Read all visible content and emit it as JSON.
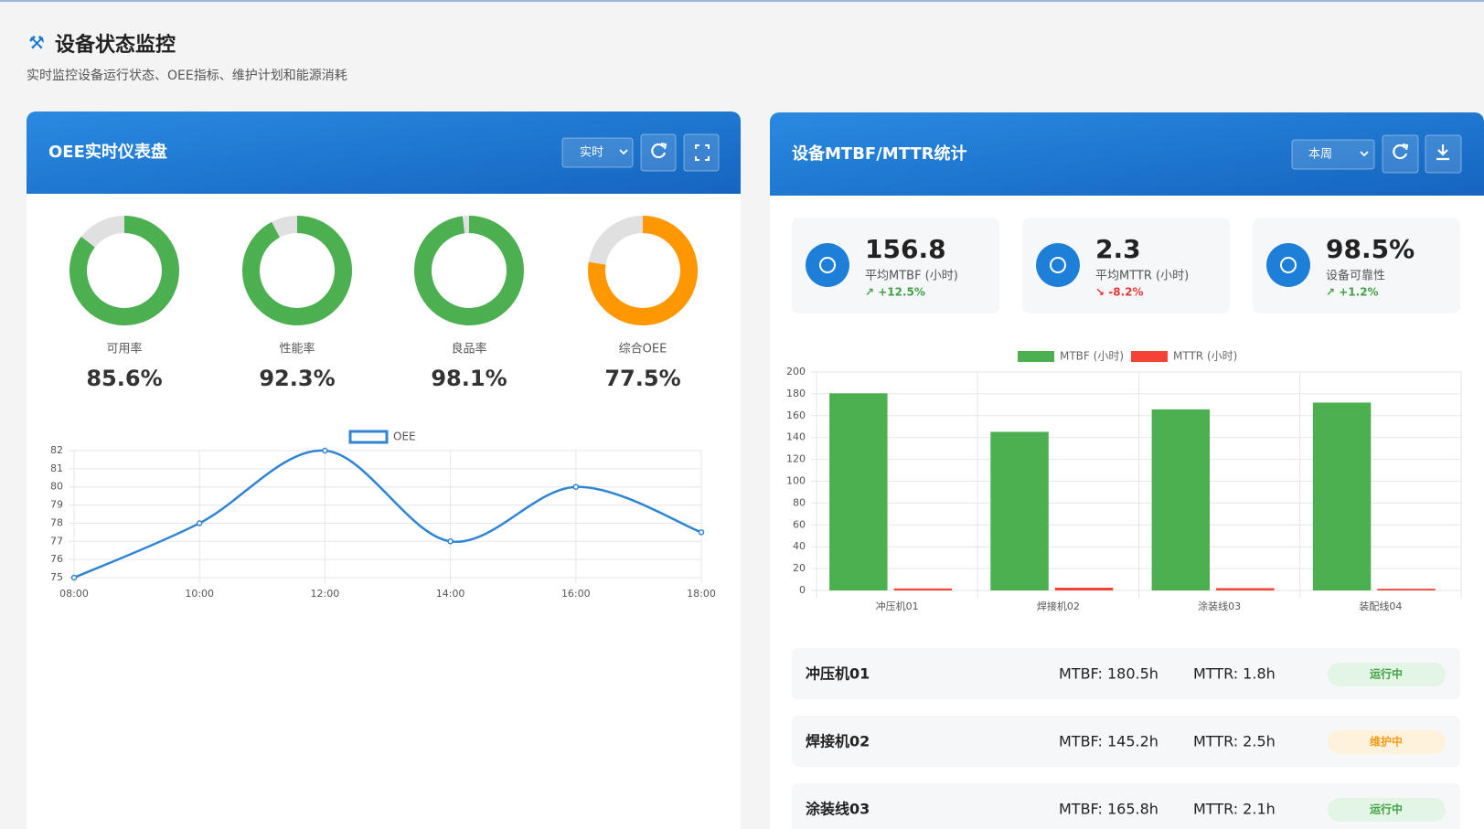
{
  "header": {
    "title": "设备状态监控",
    "subtitle": "实时监控设备运行状态、OEE指标、维护计划和能源消耗"
  },
  "oee_panel": {
    "title": "OEE实时仪表盘",
    "select": "实时",
    "gauges": {
      "labels": [
        "可用率",
        "性能率",
        "良品率",
        "综合OEE"
      ],
      "values": [
        85.6,
        92.3,
        98.1,
        77.5
      ],
      "value_labels": [
        "85.6%",
        "92.3%",
        "98.1%",
        "77.5%"
      ],
      "colors": [
        "#4caf50",
        "#4caf50",
        "#4caf50",
        "#ff9800"
      ]
    }
  },
  "chart_data": [
    {
      "type": "line",
      "categories": [
        "08:00",
        "10:00",
        "12:00",
        "14:00",
        "16:00",
        "18:00"
      ],
      "series": [
        {
          "name": "OEE",
          "color": "#2f85d4",
          "values": [
            75,
            78,
            82,
            77,
            80,
            77.5
          ]
        }
      ],
      "ylim": [
        75,
        82
      ],
      "yticks": [
        75,
        76,
        77,
        78,
        79,
        80,
        81,
        82
      ],
      "grid": true,
      "legend": "top"
    },
    {
      "type": "bar",
      "categories": [
        "冲压机01",
        "焊接机02",
        "涂装线03",
        "装配线04"
      ],
      "series": [
        {
          "name": "MTBF (小时)",
          "color": "#4caf50",
          "values": [
            180.5,
            145.2,
            165.8,
            172
          ]
        },
        {
          "name": "MTTR (小时)",
          "color": "#f44336",
          "values": [
            1.8,
            2.5,
            2.1,
            1.5
          ]
        }
      ],
      "ylim": [
        0,
        200
      ],
      "yticks": [
        0,
        20,
        40,
        60,
        80,
        100,
        120,
        140,
        160,
        180,
        200
      ],
      "grid": true,
      "legend": "top"
    }
  ],
  "mtbf_panel": {
    "title": "设备MTBF/MTTR统计",
    "select": "本周",
    "stats": [
      {
        "value": "156.8",
        "label": "平均MTBF (小时)",
        "change": "↗ +12.5%",
        "change_color": "#43a047"
      },
      {
        "value": "2.3",
        "label": "平均MTTR (小时)",
        "change": "↘ -8.2%",
        "change_color": "#e53935"
      },
      {
        "value": "98.5%",
        "label": "设备可靠性",
        "change": "↗ +1.2%",
        "change_color": "#43a047"
      }
    ],
    "rows": [
      {
        "name": "冲压机01",
        "mtbf": "MTBF: 180.5h",
        "mttr": "MTTR: 1.8h",
        "status": "运行中",
        "status_color": "#43a047",
        "status_bg": "#e3f5e5"
      },
      {
        "name": "焊接机02",
        "mtbf": "MTBF: 145.2h",
        "mttr": "MTTR: 2.5h",
        "status": "维护中",
        "status_color": "#f59c1a",
        "status_bg": "#fff2dc"
      },
      {
        "name": "涂装线03",
        "mtbf": "MTBF: 165.8h",
        "mttr": "MTTR: 2.1h",
        "status": "运行中",
        "status_color": "#43a047",
        "status_bg": "#e3f5e5"
      }
    ]
  }
}
